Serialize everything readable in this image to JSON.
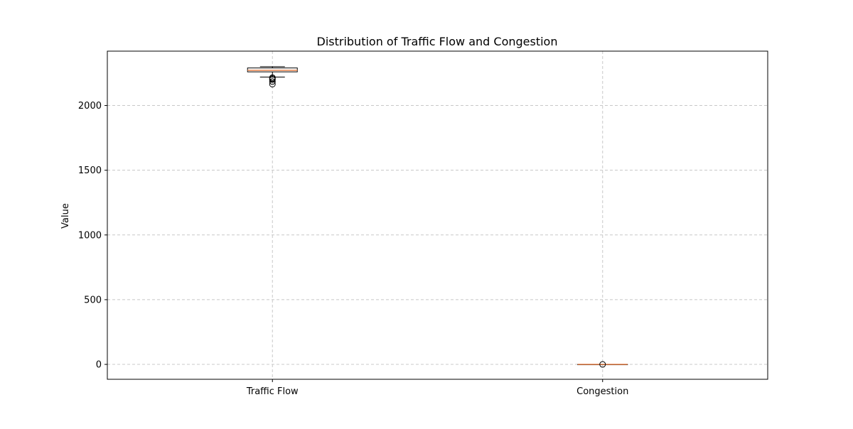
{
  "chart_data": {
    "type": "box",
    "title": "Distribution of Traffic Flow and Congestion",
    "xlabel": "",
    "ylabel": "Value",
    "ylim": [
      -115,
      2420
    ],
    "yticks": [
      0,
      500,
      1000,
      1500,
      2000
    ],
    "ytick_labels": [
      "0",
      "500",
      "1000",
      "1500",
      "2000"
    ],
    "grid": true,
    "categories": [
      "Traffic Flow",
      "Congestion"
    ],
    "boxes": [
      {
        "name": "Traffic Flow",
        "whisker_low": 2220,
        "q1": 2260,
        "median": 2272,
        "q3": 2290,
        "whisker_high": 2300,
        "outliers": [
          2165,
          2185,
          2200,
          2208,
          2215
        ]
      },
      {
        "name": "Congestion",
        "whisker_low": 0,
        "q1": 0,
        "median": 0,
        "q3": 0,
        "whisker_high": 0,
        "outliers": [
          0
        ]
      }
    ]
  },
  "colors": {
    "box_edge": "#000000",
    "box_fill": "#ffffff",
    "median": "#e8824a",
    "grid": "#c8c8c8",
    "axis": "#000000"
  }
}
